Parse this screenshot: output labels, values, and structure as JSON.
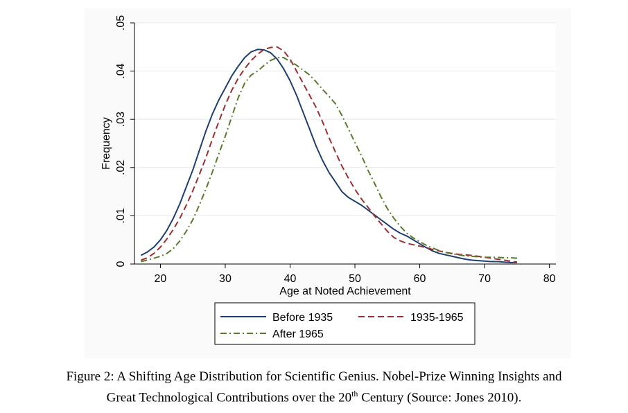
{
  "chart_data": {
    "type": "line",
    "xlabel": "Age at Noted Achievement",
    "ylabel": "Frequency",
    "xlim": [
      16,
      81
    ],
    "ylim": [
      0,
      0.05
    ],
    "x_ticks": [
      20,
      30,
      40,
      50,
      60,
      70,
      80
    ],
    "x_tick_labels": [
      "20",
      "30",
      "40",
      "50",
      "60",
      "70",
      "80"
    ],
    "y_ticks": [
      0,
      0.01,
      0.02,
      0.03,
      0.04,
      0.05
    ],
    "y_tick_labels": [
      "0",
      ".01",
      ".02",
      ".03",
      ".04",
      ".05"
    ],
    "grid": "horizontal",
    "legend_position": "below",
    "series": [
      {
        "name": "Before 1935",
        "color": "#1f3e6e",
        "dash": "solid",
        "x": [
          17,
          18,
          19,
          20,
          21,
          22,
          23,
          24,
          25,
          26,
          27,
          28,
          29,
          30,
          31,
          32,
          33,
          34,
          35,
          36,
          37,
          38,
          39,
          40,
          41,
          42,
          43,
          44,
          45,
          46,
          47,
          48,
          49,
          50,
          51,
          52,
          53,
          54,
          55,
          56,
          57,
          58,
          59,
          60,
          61,
          62,
          63,
          64,
          65,
          66,
          67,
          68,
          69,
          70,
          71,
          72,
          73,
          74,
          75
        ],
        "values": [
          0.0018,
          0.0025,
          0.0035,
          0.005,
          0.007,
          0.0095,
          0.0125,
          0.016,
          0.0195,
          0.0235,
          0.0275,
          0.031,
          0.034,
          0.0365,
          0.039,
          0.041,
          0.0428,
          0.044,
          0.0445,
          0.0444,
          0.0438,
          0.0425,
          0.0405,
          0.038,
          0.035,
          0.0315,
          0.028,
          0.0245,
          0.0215,
          0.019,
          0.017,
          0.015,
          0.0138,
          0.013,
          0.0122,
          0.0112,
          0.0102,
          0.0092,
          0.0082,
          0.0072,
          0.0064,
          0.0058,
          0.005,
          0.0042,
          0.0034,
          0.0027,
          0.0022,
          0.0019,
          0.0016,
          0.0013,
          0.001,
          0.0008,
          0.0007,
          0.0006,
          0.0005,
          0.0005,
          0.0004,
          0.0003,
          0.0003
        ]
      },
      {
        "name": "1935-1965",
        "color": "#9b2f2f",
        "dash": "long-dash",
        "x": [
          17,
          18,
          19,
          20,
          21,
          22,
          23,
          24,
          25,
          26,
          27,
          28,
          29,
          30,
          31,
          32,
          33,
          34,
          35,
          36,
          37,
          38,
          39,
          40,
          41,
          42,
          43,
          44,
          45,
          46,
          47,
          48,
          49,
          50,
          51,
          52,
          53,
          54,
          55,
          56,
          57,
          58,
          59,
          60,
          61,
          62,
          63,
          64,
          65,
          66,
          67,
          68,
          69,
          70,
          71,
          72,
          73,
          74,
          75
        ],
        "values": [
          0.0008,
          0.0013,
          0.0022,
          0.0035,
          0.0052,
          0.0072,
          0.0095,
          0.0122,
          0.0152,
          0.0185,
          0.022,
          0.0258,
          0.0295,
          0.033,
          0.036,
          0.0385,
          0.0405,
          0.0422,
          0.0435,
          0.0445,
          0.0449,
          0.045,
          0.0442,
          0.0425,
          0.04,
          0.0375,
          0.035,
          0.0325,
          0.0295,
          0.0262,
          0.0232,
          0.0203,
          0.0178,
          0.0155,
          0.0135,
          0.0118,
          0.01,
          0.0084,
          0.0068,
          0.0055,
          0.0048,
          0.0043,
          0.004,
          0.0037,
          0.0034,
          0.003,
          0.0027,
          0.0024,
          0.0022,
          0.002,
          0.0019,
          0.0018,
          0.0016,
          0.0014,
          0.0012,
          0.001,
          0.0008,
          0.0006,
          0.0004
        ]
      },
      {
        "name": "After 1965",
        "color": "#5a7a28",
        "dash": "dash-dot",
        "x": [
          17,
          18,
          19,
          20,
          21,
          22,
          23,
          24,
          25,
          26,
          27,
          28,
          29,
          30,
          31,
          32,
          33,
          34,
          35,
          36,
          37,
          38,
          39,
          40,
          41,
          42,
          43,
          44,
          45,
          46,
          47,
          48,
          49,
          50,
          51,
          52,
          53,
          54,
          55,
          56,
          57,
          58,
          59,
          60,
          61,
          62,
          63,
          64,
          65,
          66,
          67,
          68,
          69,
          70,
          71,
          72,
          73,
          74,
          75
        ],
        "values": [
          0.0005,
          0.0008,
          0.0012,
          0.0016,
          0.0022,
          0.0032,
          0.0048,
          0.0068,
          0.0092,
          0.0122,
          0.0155,
          0.019,
          0.0228,
          0.0265,
          0.0305,
          0.0345,
          0.0375,
          0.0392,
          0.04,
          0.0412,
          0.0422,
          0.0428,
          0.0428,
          0.042,
          0.0412,
          0.0402,
          0.0392,
          0.0378,
          0.0362,
          0.0348,
          0.0332,
          0.0308,
          0.028,
          0.0252,
          0.0225,
          0.0195,
          0.0168,
          0.014,
          0.0115,
          0.0095,
          0.0078,
          0.0064,
          0.0054,
          0.0046,
          0.0039,
          0.0033,
          0.0028,
          0.0024,
          0.0021,
          0.0019,
          0.0017,
          0.0016,
          0.0015,
          0.0014,
          0.0014,
          0.0014,
          0.0013,
          0.0013,
          0.0012
        ]
      }
    ]
  },
  "caption": {
    "line1": "Figure 2:  A Shifting Age Distribution for Scientific Genius.  Nobel-Prize Winning Insights and",
    "line2_before": "Great Technological Contributions over the 20",
    "line2_sup": "th",
    "line2_after": " Century (Source: Jones 2010)."
  }
}
